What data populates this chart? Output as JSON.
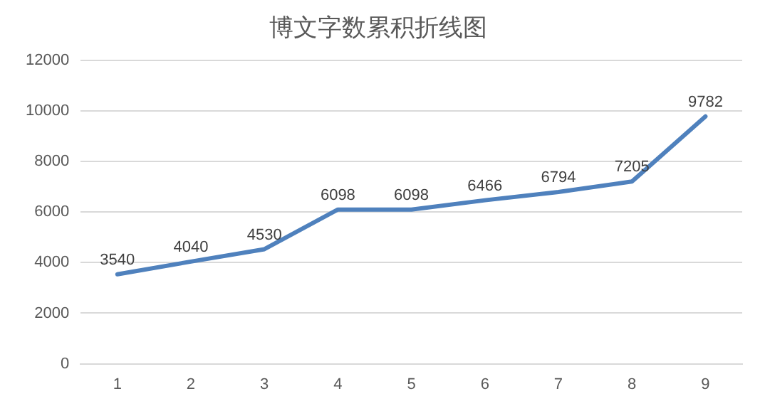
{
  "chart_data": {
    "type": "line",
    "title": "博文字数累积折线图",
    "categories": [
      "1",
      "2",
      "3",
      "4",
      "5",
      "6",
      "7",
      "8",
      "9"
    ],
    "series": [
      {
        "color": "#4f81bd",
        "values": [
          3540,
          4040,
          4530,
          6098,
          6098,
          6466,
          6794,
          7205,
          9782
        ]
      }
    ],
    "ylim": [
      0,
      12000
    ],
    "yticks": [
      0,
      2000,
      4000,
      6000,
      8000,
      10000,
      12000
    ],
    "grid": "y",
    "legend": false,
    "marker": "none",
    "data_labels": true
  }
}
